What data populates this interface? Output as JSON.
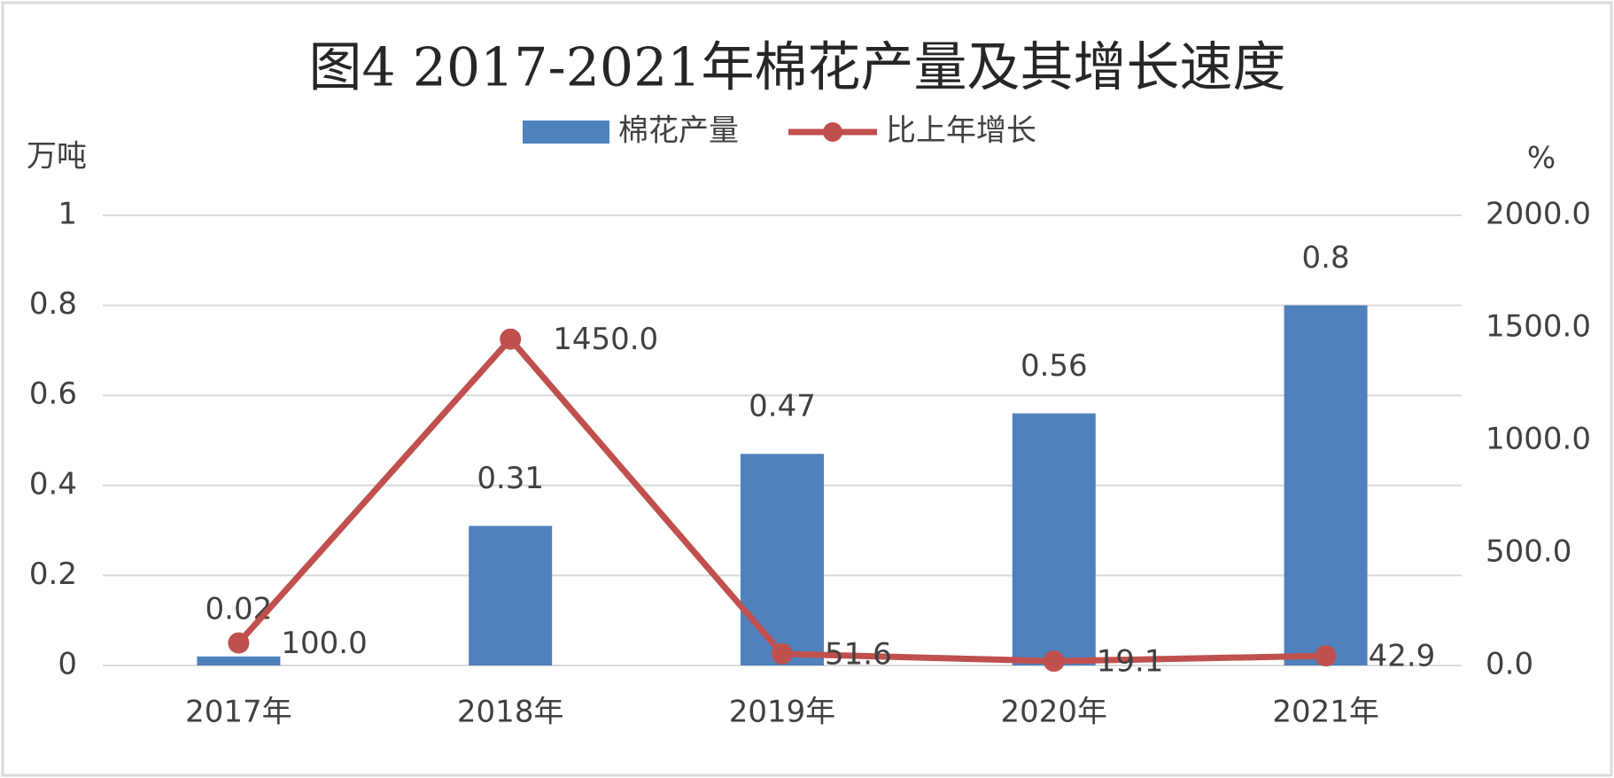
{
  "chart_data": {
    "type": "bar",
    "title": "图4      2017-2021年棉花产量及其增长速度",
    "y_label": "万吨",
    "y2_label": "%",
    "categories": [
      "2017年",
      "2018年",
      "2019年",
      "2020年",
      "2021年"
    ],
    "series": [
      {
        "name": "棉花产量",
        "color": "#4f81bd",
        "type": "bar",
        "values": [
          0.02,
          0.31,
          0.47,
          0.56,
          0.8
        ]
      },
      {
        "name": "比上年增长",
        "color": "#c0504d",
        "type": "line",
        "axis": "y2",
        "values": [
          100,
          1450,
          51.6,
          19.1,
          42.9
        ],
        "value_labels": [
          "100.0",
          "1450.0",
          "51.6",
          "19.1",
          "42.9"
        ]
      }
    ],
    "ylim": [
      0,
      1
    ],
    "yticks": [
      0,
      0.2,
      0.4,
      0.6,
      0.8,
      1
    ],
    "y2lim": [
      0,
      2000
    ],
    "y2ticks": [
      {
        "value": 0,
        "label": "0.0"
      },
      {
        "value": 500,
        "label": "500.0"
      },
      {
        "value": 1000,
        "label": "1000.0"
      },
      {
        "value": 1500,
        "label": "1500.0"
      },
      {
        "value": 2000,
        "label": "2000.0"
      }
    ],
    "grid": true,
    "legend": "top"
  }
}
